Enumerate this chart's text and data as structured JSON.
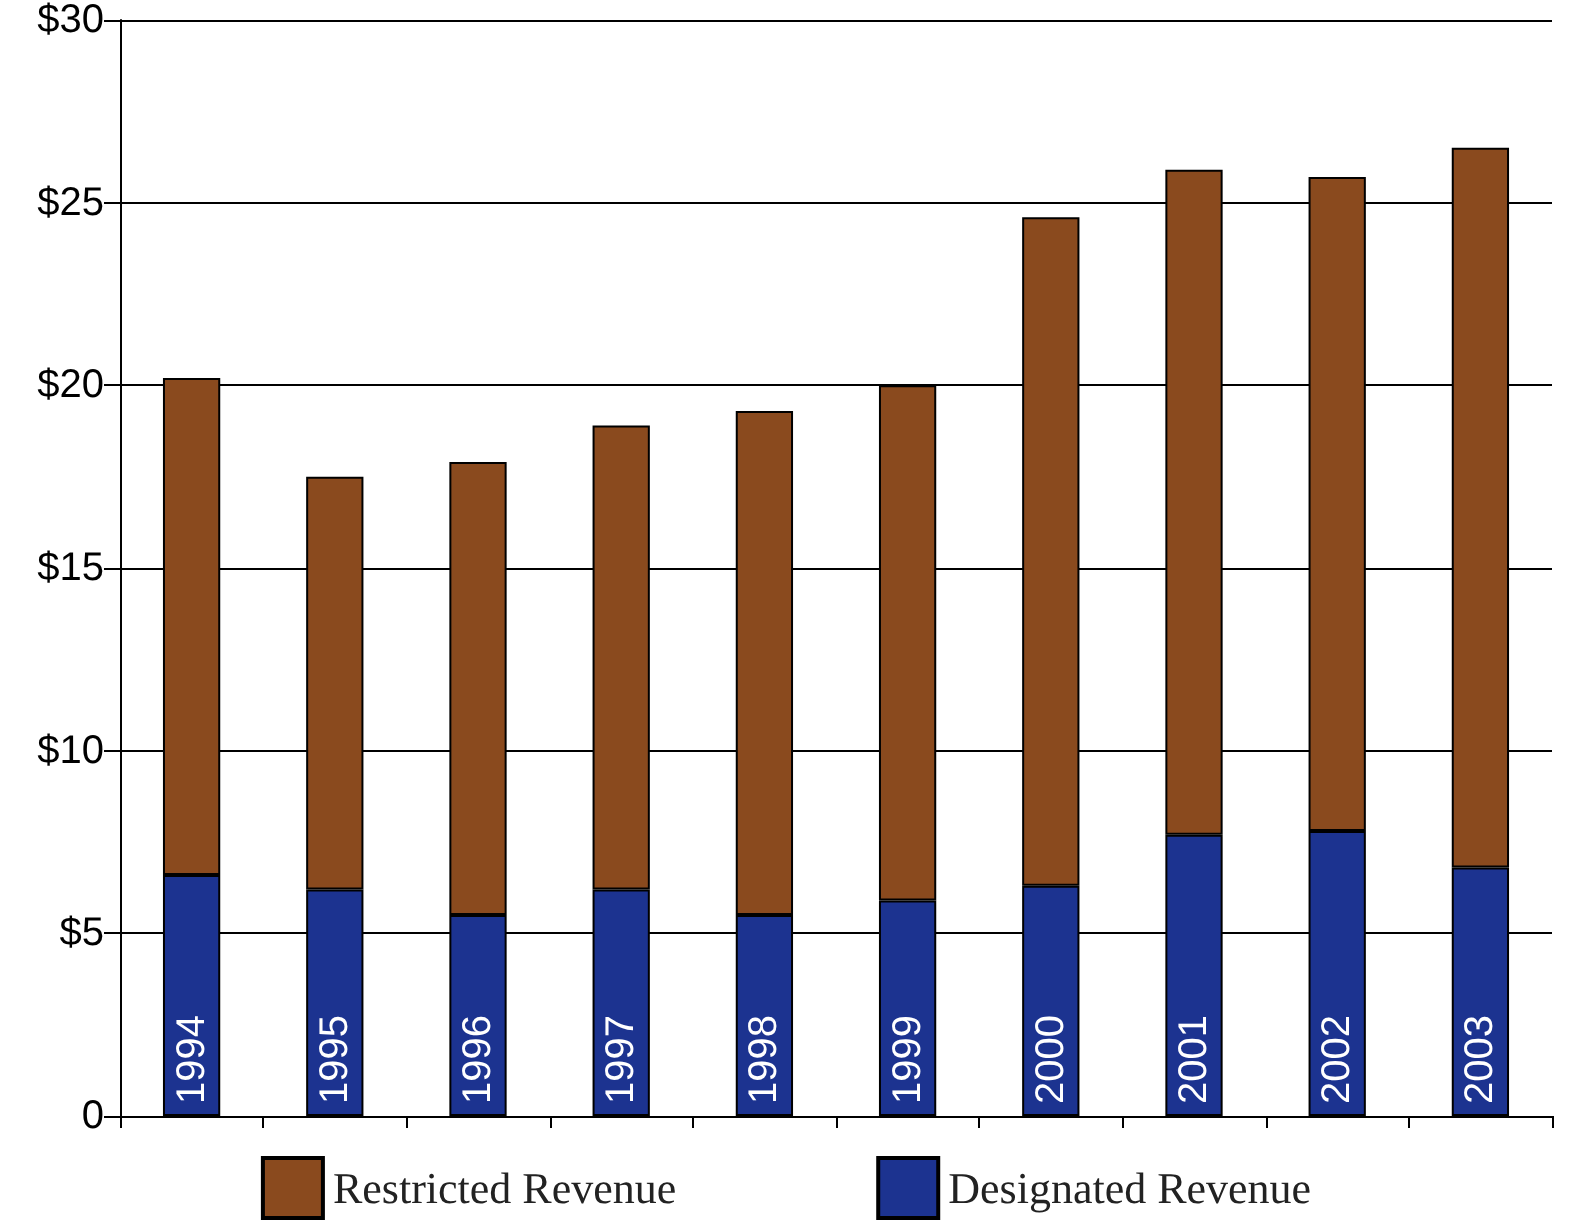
{
  "chart_data": {
    "type": "bar",
    "stacked": true,
    "categories": [
      "1994",
      "1995",
      "1996",
      "1997",
      "1998",
      "1999",
      "2000",
      "2001",
      "2002",
      "2003"
    ],
    "series": [
      {
        "name": "Designated Revenue",
        "color": "#1c3390",
        "values": [
          6.6,
          6.2,
          5.5,
          6.2,
          5.5,
          5.9,
          6.3,
          7.7,
          7.8,
          6.8
        ]
      },
      {
        "name": "Restricted Revenue",
        "color": "#8a4a1e",
        "values": [
          13.6,
          11.3,
          12.4,
          12.7,
          13.8,
          14.1,
          18.3,
          18.2,
          17.9,
          19.7
        ]
      }
    ],
    "ylim": [
      0,
      30
    ],
    "yticks": [
      {
        "value": 0,
        "label": "0"
      },
      {
        "value": 5,
        "label": "$5"
      },
      {
        "value": 10,
        "label": "$10"
      },
      {
        "value": 15,
        "label": "$15"
      },
      {
        "value": 20,
        "label": "$20"
      },
      {
        "value": 25,
        "label": "$25"
      },
      {
        "value": 30,
        "label": "$30"
      }
    ],
    "grid": "y",
    "legend": "bottom"
  }
}
